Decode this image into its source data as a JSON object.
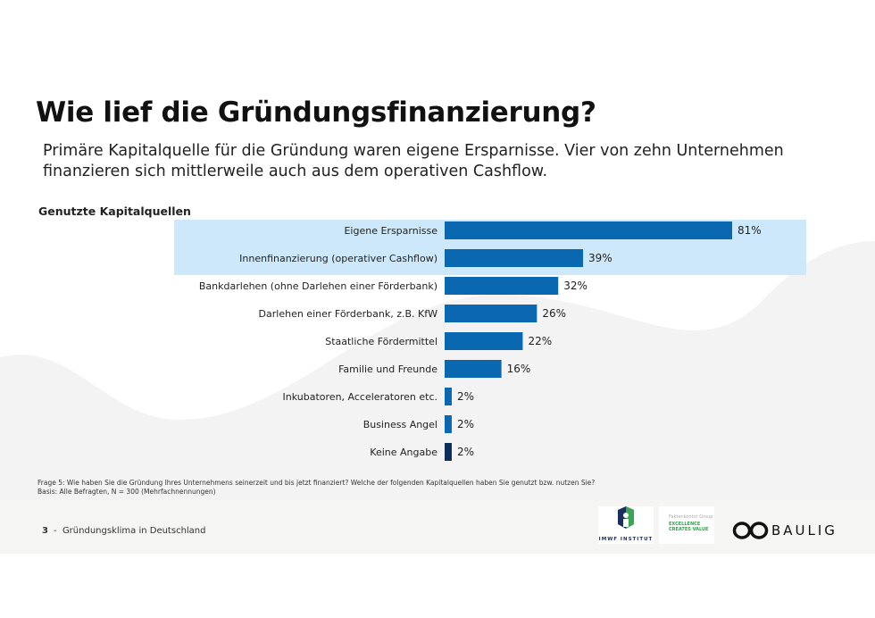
{
  "title": "Wie lief die Gründungsfinanzierung?",
  "subtitle": "Primäre Kapitalquelle für die Gründung waren eigene Ersparnisse. Vier von zehn Unternehmen finanzieren sich mittlerweile auch aus dem operativen Cashflow.",
  "chart_data": {
    "type": "bar",
    "orientation": "horizontal",
    "title": "Genutzte Kapitalquellen",
    "categories": [
      "Eigene Ersparnisse",
      "Innenfinanzierung (operativer Cashflow)",
      "Bankdarlehen (ohne Darlehen einer Förderbank)",
      "Darlehen einer Förderbank, z.B. KfW",
      "Staatliche Fördermittel",
      "Familie und Freunde",
      "Inkubatoren, Acceleratoren etc.",
      "Business Angel",
      "Keine Angabe"
    ],
    "values": [
      81,
      39,
      32,
      26,
      22,
      16,
      2,
      2,
      2
    ],
    "labels": [
      "81%",
      "39%",
      "32%",
      "26%",
      "22%",
      "16%",
      "2%",
      "2%",
      "2%"
    ],
    "highlighted": [
      0,
      1
    ],
    "unit": "%",
    "xlim": [
      0,
      100
    ],
    "colors": {
      "bar": "#0a68b0",
      "last": "#0b2e5c",
      "highlight": "#cde8fa"
    }
  },
  "footnote": {
    "question": "Frage 5: Wie haben Sie die Gründung Ihres Unternehmens seinerzeit und bis jetzt finanziert? Welche der folgenden Kapitalquellen haben Sie genutzt bzw. nutzen Sie?",
    "basis": "Basis: Alle Befragten, N = 300 (Mehrfachnennungen)"
  },
  "footer": {
    "page": "3",
    "separator": "-",
    "text": "Gründungsklima in Deutschland"
  },
  "logos": {
    "imwf": "IMWF INSTITUT",
    "faktenkontor_small": "Faktenkontor Group",
    "faktenkontor_line1": "EXCELLENCE",
    "faktenkontor_line2": "CREATES VALUE",
    "baulig": "BAULIG"
  }
}
